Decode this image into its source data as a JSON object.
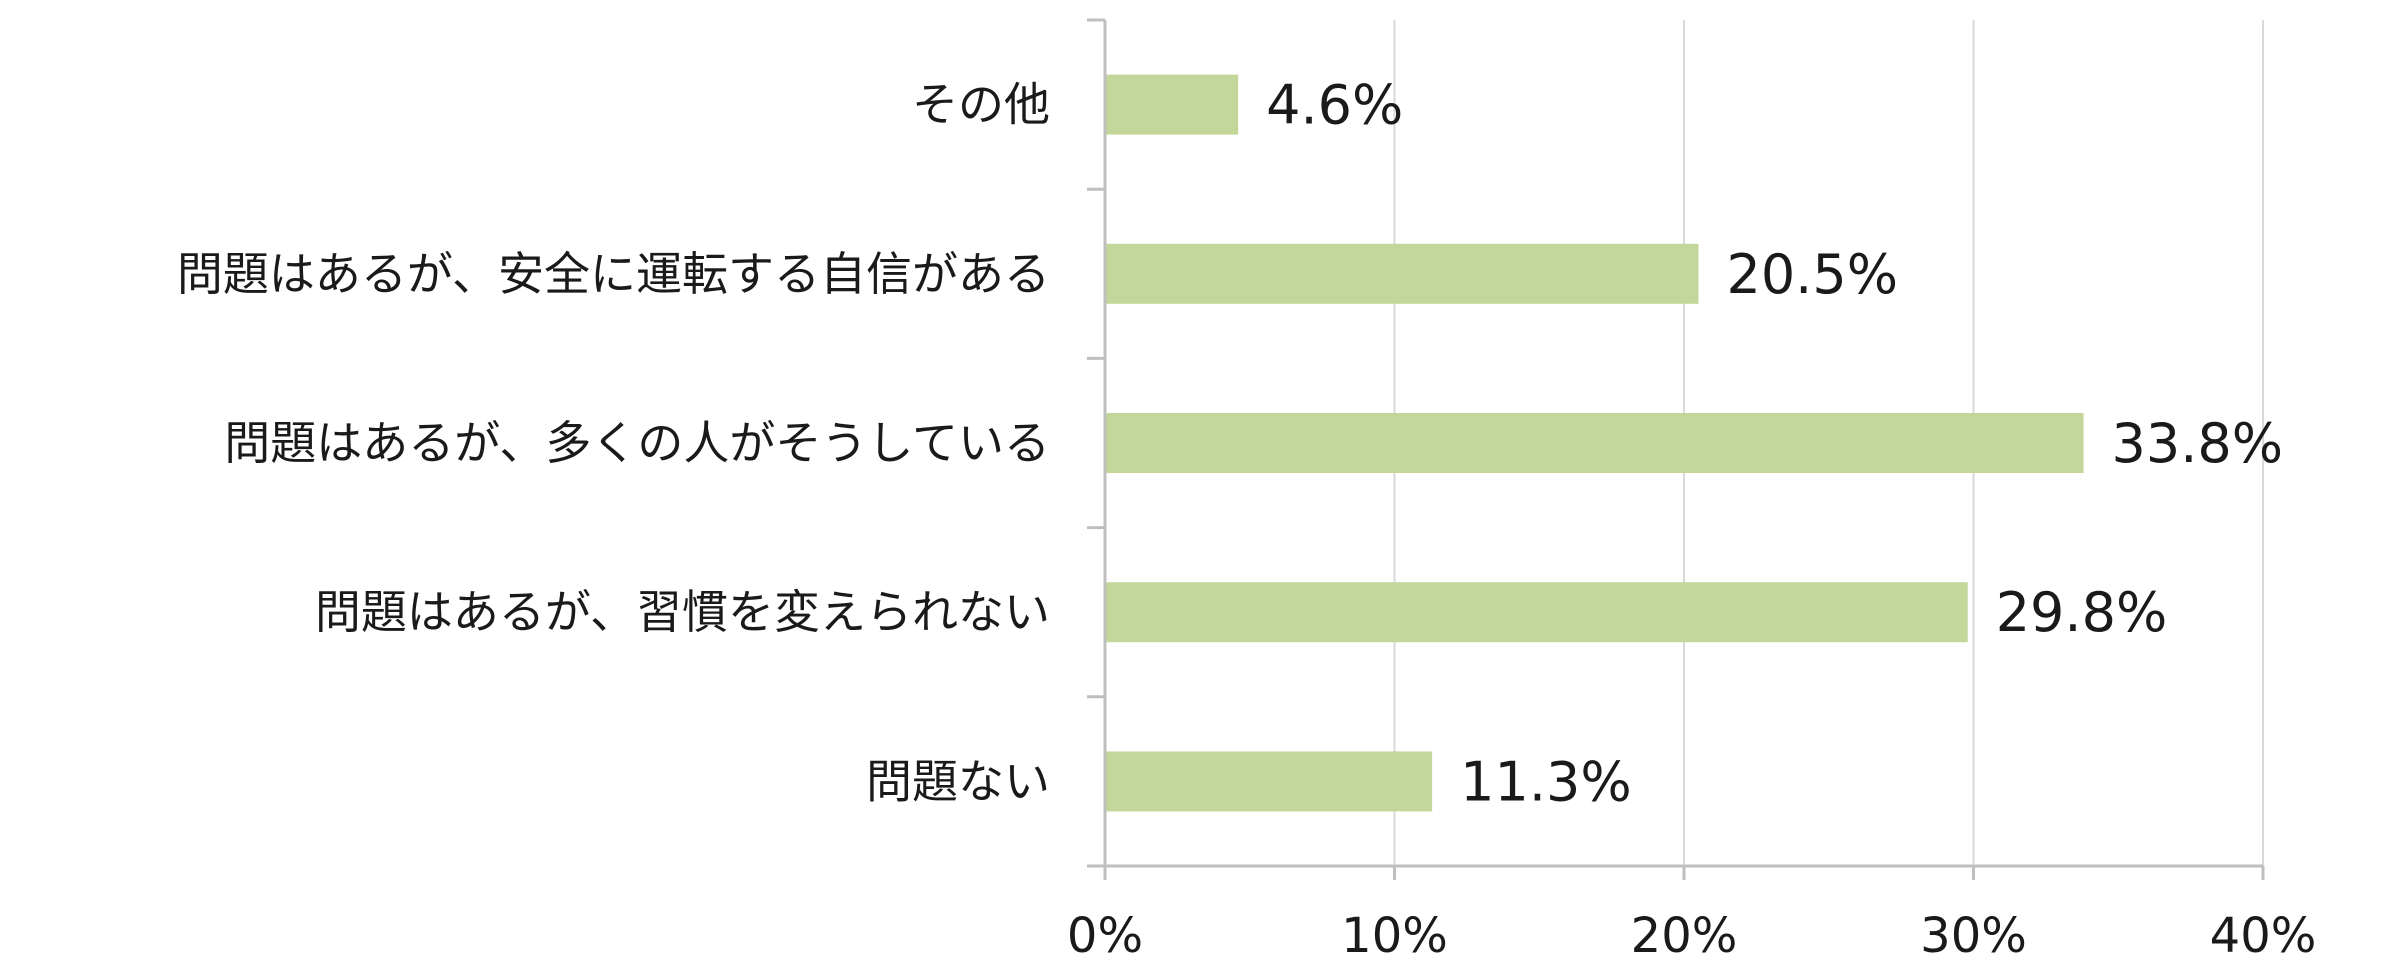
{
  "chart_data": {
    "type": "bar",
    "orientation": "horizontal",
    "title": "",
    "xlabel": "",
    "ylabel": "",
    "categories": [
      "その他",
      "問題はあるが、安全に運転する自信がある",
      "問題はあるが、多くの人がそうしている",
      "問題はあるが、習慣を変えられない",
      "問題ない"
    ],
    "values": [
      4.6,
      20.5,
      33.8,
      29.8,
      11.3
    ],
    "value_labels": [
      "4.6%",
      "20.5%",
      "33.8%",
      "29.8%",
      "11.3%"
    ],
    "xlim": [
      0,
      40
    ],
    "x_ticks": [
      0,
      10,
      20,
      30,
      40
    ],
    "x_tick_labels": [
      "0%",
      "10%",
      "20%",
      "30%",
      "40%"
    ],
    "grid": true,
    "legend": "none",
    "colors": {
      "bar": "#c4d79b",
      "grid": "#d9d9d9",
      "axis": "#bfbfbf",
      "text": "#1a1a1a"
    }
  }
}
